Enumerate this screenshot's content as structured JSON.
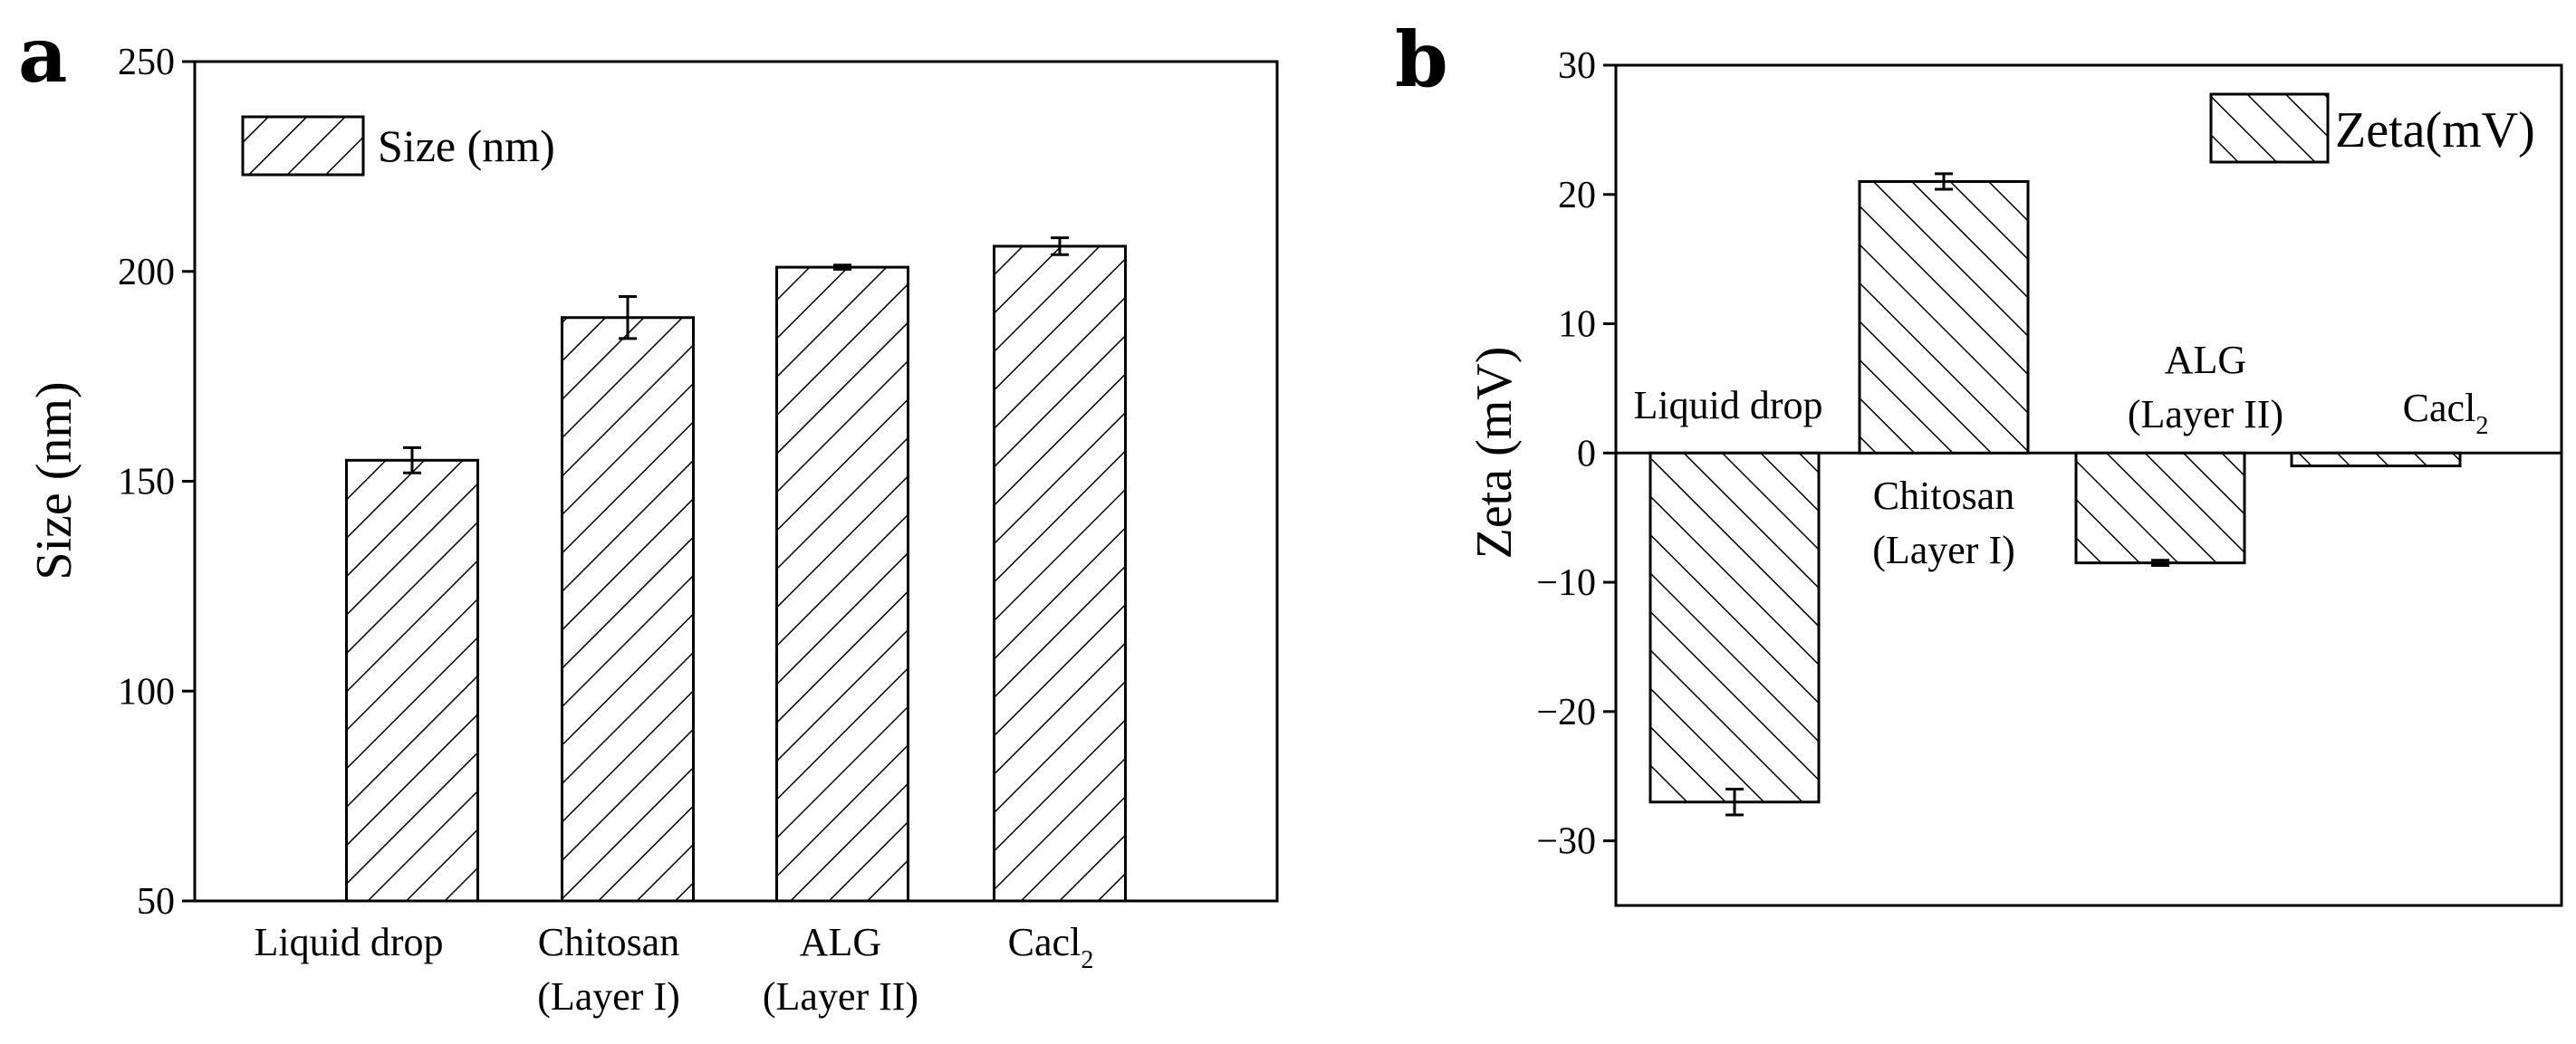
{
  "figure": {
    "panel_a_letter": "a",
    "panel_b_letter": "b"
  },
  "chart_data": [
    {
      "panel": "a",
      "type": "bar",
      "ylabel": "Size (nm)",
      "ylim": [
        50,
        250
      ],
      "yticks": [
        50,
        100,
        150,
        200,
        250
      ],
      "categories": [
        {
          "line1": "Liquid drop",
          "line2": ""
        },
        {
          "line1": "Chitosan",
          "line2": "(Layer I)"
        },
        {
          "line1": "ALG",
          "line2": "(Layer II)"
        },
        {
          "line1": "Cacl",
          "line2": "",
          "subscript": "2"
        }
      ],
      "series": [
        {
          "name": "Size (nm)",
          "values": [
            155,
            189,
            201,
            206
          ],
          "errors": [
            3,
            5,
            0.5,
            2
          ]
        }
      ],
      "legend_position": "top-left",
      "hatch": "forward-diagonal"
    },
    {
      "panel": "b",
      "type": "bar",
      "ylabel": "Zeta (mV)",
      "ylim": [
        -35,
        30
      ],
      "yticks": [
        -30,
        -20,
        -10,
        0,
        10,
        20,
        30
      ],
      "categories": [
        {
          "line1": "Liquid drop",
          "line2": ""
        },
        {
          "line1": "Chitosan",
          "line2": "(Layer I)"
        },
        {
          "line1": "ALG",
          "line2": "(Layer II)"
        },
        {
          "line1": "Cacl",
          "line2": "",
          "subscript": "2"
        }
      ],
      "series": [
        {
          "name": "Zeta(mV)",
          "values": [
            -27,
            21,
            -8.5,
            -1
          ],
          "errors": [
            1,
            0.6,
            0.2,
            0
          ]
        }
      ],
      "legend_position": "top-right",
      "hatch": "back-diagonal"
    }
  ]
}
